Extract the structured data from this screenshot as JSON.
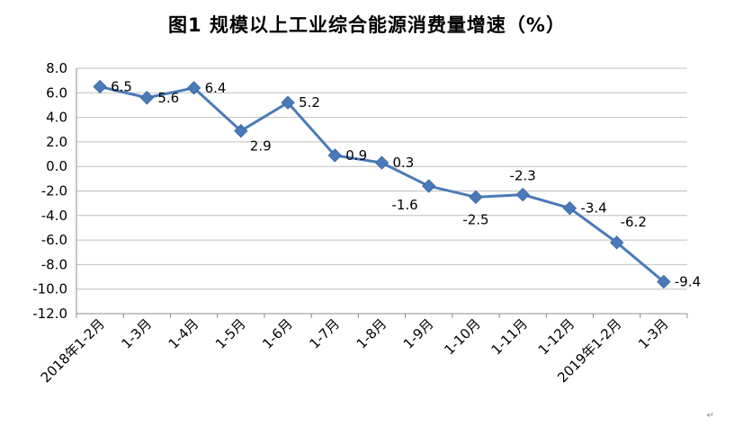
{
  "chart_data": {
    "type": "line",
    "title": "图1  规模以上工业综合能源消费量增速（%）",
    "xlabel": "",
    "ylabel": "",
    "ylim": [
      -12,
      8
    ],
    "yticks": [
      8.0,
      6.0,
      4.0,
      2.0,
      0.0,
      -2.0,
      -4.0,
      -6.0,
      -8.0,
      -10.0,
      -12.0
    ],
    "ytick_labels": [
      "8.0",
      "6.0",
      "4.0",
      "2.0",
      "0.0",
      "-2.0",
      "-4.0",
      "-6.0",
      "-8.0",
      "-10.0",
      "-12.0"
    ],
    "grid": true,
    "categories": [
      "2018年1-2月",
      "1-3月",
      "1-4月",
      "1-5月",
      "1-6月",
      "1-7月",
      "1-8月",
      "1-9月",
      "1-10月",
      "1-11月",
      "1-12月",
      "2019年1-2月",
      "1-3月"
    ],
    "series": [
      {
        "name": "规模以上工业综合能源消费量增速",
        "values": [
          6.5,
          5.6,
          6.4,
          2.9,
          5.2,
          0.9,
          0.3,
          -1.6,
          -2.5,
          -2.3,
          -3.4,
          -6.2,
          -9.4
        ],
        "labels": [
          "6.5",
          "5.6",
          "6.4",
          "2.9",
          "5.2",
          "0.9",
          "0.3",
          "-1.6",
          "-2.5",
          "-2.3",
          "-3.4",
          "-6.2",
          "-9.4"
        ]
      }
    ]
  },
  "colors": {
    "line": "#4a7ab8",
    "marker": "#4a7ab8",
    "grid": "#bfbfbf",
    "axis": "#8c8c8c"
  },
  "footer": {
    "mark": "↵"
  }
}
